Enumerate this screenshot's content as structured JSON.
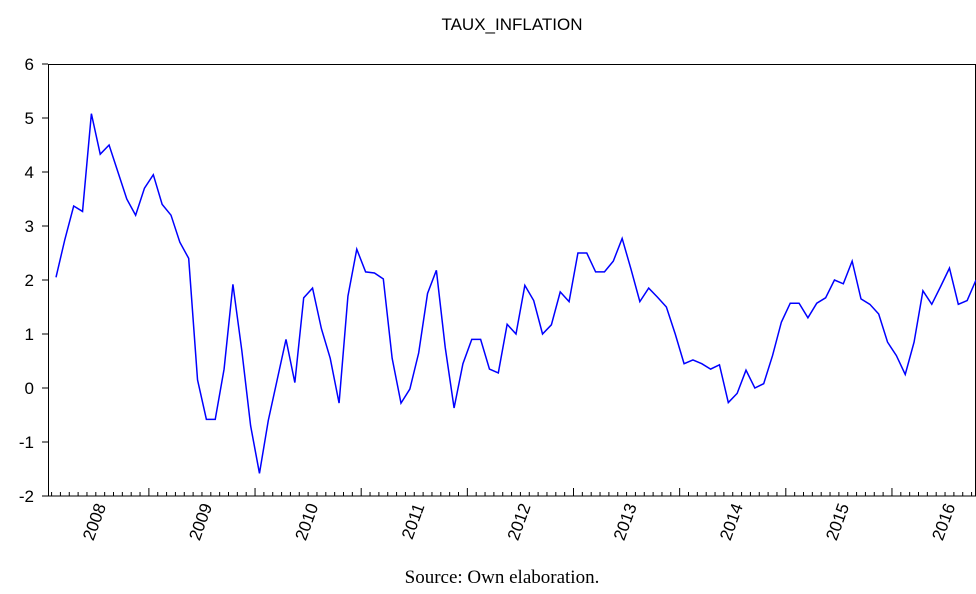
{
  "chart_data": {
    "type": "line",
    "title": "TAUX_INFLATION",
    "caption": "Source: Own elaboration.",
    "categories": [
      null,
      null,
      null,
      null,
      null,
      "2008",
      null,
      null,
      null,
      null,
      null,
      null,
      null,
      null,
      null,
      null,
      null,
      "2009",
      null,
      null,
      null,
      null,
      null,
      null,
      null,
      null,
      null,
      null,
      null,
      "2010",
      null,
      null,
      null,
      null,
      null,
      null,
      null,
      null,
      null,
      null,
      null,
      "2011",
      null,
      null,
      null,
      null,
      null,
      null,
      null,
      null,
      null,
      null,
      null,
      "2012",
      null,
      null,
      null,
      null,
      null,
      null,
      null,
      null,
      null,
      null,
      null,
      "2013",
      null,
      null,
      null,
      null,
      null,
      null,
      null,
      null,
      null,
      null,
      null,
      "2014",
      null,
      null,
      null,
      null,
      null,
      null,
      null,
      null,
      null,
      null,
      null,
      "2015",
      null,
      null,
      null,
      null,
      null,
      null,
      null,
      null,
      null,
      null,
      null,
      "2016",
      null,
      null,
      null
    ],
    "values": [
      2.05,
      2.75,
      3.37,
      3.27,
      5.08,
      4.33,
      4.5,
      4.0,
      3.5,
      3.2,
      3.7,
      3.95,
      3.4,
      3.2,
      2.7,
      2.4,
      0.15,
      -0.58,
      -0.58,
      0.35,
      1.92,
      0.7,
      -0.7,
      -1.58,
      -0.6,
      0.15,
      0.9,
      0.1,
      1.67,
      1.85,
      1.1,
      0.55,
      -0.28,
      1.7,
      2.57,
      2.15,
      2.13,
      2.02,
      0.55,
      -0.28,
      -0.02,
      0.65,
      1.75,
      2.18,
      0.75,
      -0.37,
      0.45,
      0.9,
      0.9,
      0.35,
      0.28,
      1.18,
      1.0,
      1.9,
      1.62,
      1.0,
      1.17,
      1.78,
      1.6,
      2.5,
      2.5,
      2.15,
      2.15,
      2.35,
      2.77,
      2.2,
      1.6,
      1.85,
      1.68,
      1.5,
      1.0,
      0.45,
      0.52,
      0.45,
      0.35,
      0.43,
      -0.27,
      -0.1,
      0.33,
      0.0,
      0.08,
      0.6,
      1.22,
      1.57,
      1.57,
      1.3,
      1.57,
      1.67,
      2.0,
      1.93,
      2.35,
      1.65,
      1.55,
      1.37,
      0.85,
      0.6,
      0.25,
      0.85,
      1.8,
      1.55,
      1.88,
      2.22,
      1.55,
      1.62,
      2.0
    ],
    "color": "#0000ff",
    "ylim": [
      -2,
      6
    ],
    "yticks": [
      -2,
      -1,
      0,
      1,
      2,
      3,
      4,
      5,
      6
    ],
    "grid": false
  }
}
